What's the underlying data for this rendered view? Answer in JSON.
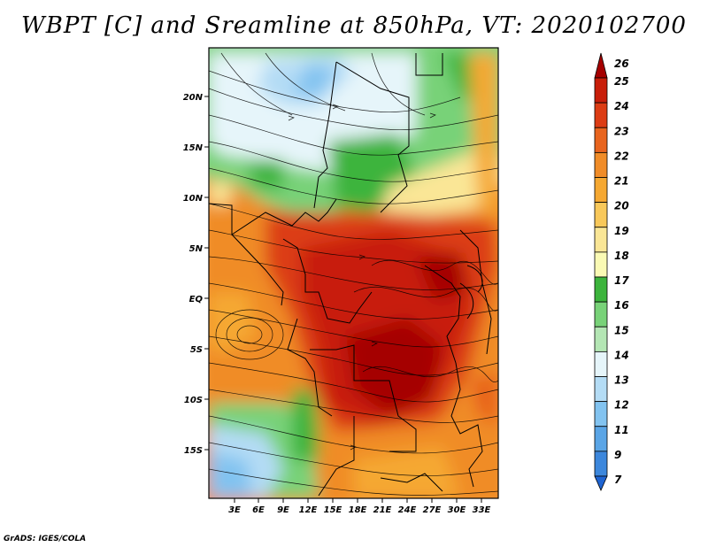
{
  "title": "WBPT [C] and Sreamline at 850hPa, VT: 2020102700",
  "credit": "GrADS: IGES/COLA",
  "map": {
    "lat_labels": [
      "20N",
      "15N",
      "10N",
      "5N",
      "EQ",
      "5S",
      "10S",
      "15S"
    ],
    "lon_labels": [
      "3E",
      "6E",
      "9E",
      "12E",
      "15E",
      "18E",
      "21E",
      "24E",
      "27E",
      "30E",
      "33E"
    ],
    "layers": [
      {
        "name": "wbpt-shading",
        "description_hidden": true
      },
      {
        "name": "streamlines"
      },
      {
        "name": "country-borders"
      }
    ]
  },
  "colorbar": {
    "labels": [
      "26",
      "25",
      "24",
      "23",
      "22",
      "21",
      "20",
      "19",
      "18",
      "17",
      "16",
      "15",
      "14",
      "13",
      "12",
      "11",
      "9",
      "7"
    ],
    "colors": [
      "#a50000",
      "#c81e0a",
      "#dc3c14",
      "#e8641e",
      "#f08c28",
      "#f5a832",
      "#f8c85a",
      "#fae696",
      "#fafab4",
      "#3cb43c",
      "#78d278",
      "#b4e6b4",
      "#e6f5fa",
      "#b4dcf5",
      "#82c3f0",
      "#5aa5e6",
      "#3c87dc",
      "#1e64d2"
    ]
  }
}
